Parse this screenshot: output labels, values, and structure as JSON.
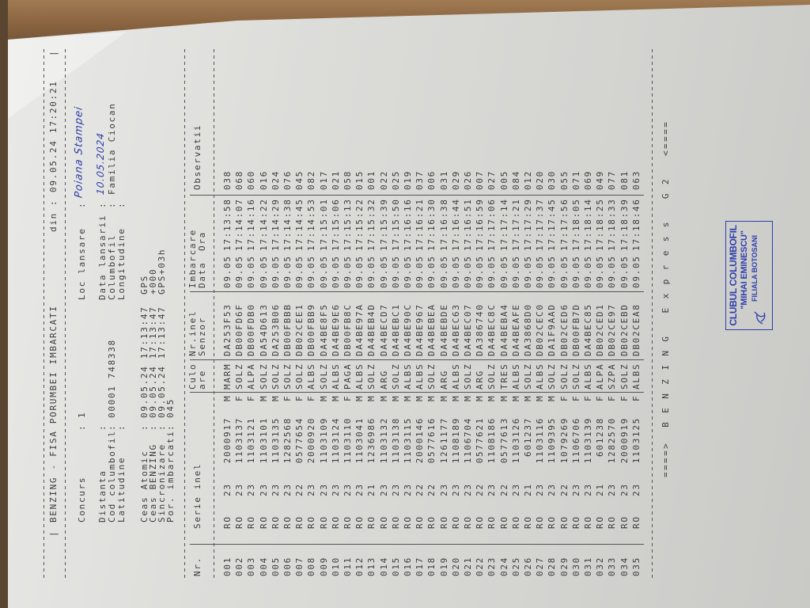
{
  "header": {
    "title": "BENZING - FISA PORUMBEI IMBARCATI",
    "din_label": "din",
    "din_value": "09.05.24 17:20:21"
  },
  "info_left": [
    {
      "label": "Concurs",
      "value": "1"
    },
    {
      "label": "Distanta",
      "value": ""
    },
    {
      "label": "Cod columbofil",
      "value": "00001 748338"
    },
    {
      "label": "Latitudine",
      "value": ""
    }
  ],
  "info_right": [
    {
      "label": "Loc lansare",
      "value": "Poiana Stampei"
    },
    {
      "label": "Data lansarii",
      "value": "10.05.2024"
    },
    {
      "label": "Columbofil",
      "value": "Familia Ciocan"
    },
    {
      "label": "Longitudine",
      "value": ""
    }
  ],
  "clocks": [
    {
      "label": "Ceas Atomic",
      "value": "09.05.24 17:13:47",
      "note": "GPS"
    },
    {
      "label": "Ceas BENZING",
      "value": "09.05.24 17:13:47",
      "note": "+000"
    },
    {
      "label": "Sincronizare",
      "value": "09.05.24 17:13:47",
      "note": "GPS+03h"
    },
    {
      "label": "Por. imbarcati",
      "value": "045",
      "note": ""
    }
  ],
  "table": {
    "headers": {
      "nr": "Nr.",
      "serie": "Serie inel",
      "culoare_1": "Culo",
      "culoare_2": "are",
      "inel_1": "Nr.inel",
      "inel_2": "Senzor",
      "imbarcare": "Imbarcare",
      "data": "Data",
      "ora": "Ora",
      "observatii": "Observatii"
    },
    "rows": [
      {
        "nr": "001",
        "country": "RO",
        "year": "23",
        "ring": "2000917",
        "sex": "M",
        "color": "MARM",
        "chip": "DA253F53",
        "date": "09.05",
        "time": "17:13:58",
        "obs": "038"
      },
      {
        "nr": "002",
        "country": "RO",
        "year": "23",
        "ring": "1103137",
        "sex": "F",
        "color": "SOLZ",
        "chip": "DB00FD6F",
        "date": "09.05",
        "time": "17:14:07",
        "obs": "068"
      },
      {
        "nr": "003",
        "country": "RO",
        "year": "23",
        "ring": "1103121",
        "sex": "F",
        "color": "ALPA",
        "chip": "DB00FDB0",
        "date": "09.05",
        "time": "17:14:16",
        "obs": "060"
      },
      {
        "nr": "004",
        "country": "RO",
        "year": "23",
        "ring": "1103101",
        "sex": "M",
        "color": "SOLZ",
        "chip": "DA54D613",
        "date": "09.05",
        "time": "17:14:22",
        "obs": "016"
      },
      {
        "nr": "005",
        "country": "RO",
        "year": "23",
        "ring": "1103135",
        "sex": "M",
        "color": "SOLZ",
        "chip": "DA253B06",
        "date": "09.05",
        "time": "17:14:29",
        "obs": "024"
      },
      {
        "nr": "006",
        "country": "RO",
        "year": "23",
        "ring": "1282568",
        "sex": "F",
        "color": "SOLZ",
        "chip": "DB00FBBB",
        "date": "09.05",
        "time": "17:14:38",
        "obs": "076"
      },
      {
        "nr": "007",
        "country": "RO",
        "year": "22",
        "ring": "0577654",
        "sex": "F",
        "color": "SOLZ",
        "chip": "DB02CEE1",
        "date": "09.05",
        "time": "17:14:45",
        "obs": "045"
      },
      {
        "nr": "008",
        "country": "RO",
        "year": "23",
        "ring": "2000920",
        "sex": "F",
        "color": "ALBS",
        "chip": "DB00FBB9",
        "date": "09.05",
        "time": "17:14:53",
        "obs": "082"
      },
      {
        "nr": "009",
        "country": "RO",
        "year": "23",
        "ring": "1103109",
        "sex": "M",
        "color": "SOLZ",
        "chip": "DA4BE8F5",
        "date": "09.05",
        "time": "17:15:01",
        "obs": "017"
      },
      {
        "nr": "010",
        "country": "RO",
        "year": "23",
        "ring": "1103124",
        "sex": "M",
        "color": "ALBS",
        "chip": "DA4BE9E6",
        "date": "09.05",
        "time": "17:15:06",
        "obs": "021"
      },
      {
        "nr": "011",
        "country": "RO",
        "year": "23",
        "ring": "1103110",
        "sex": "F",
        "color": "PAGA",
        "chip": "DB00FB8C",
        "date": "09.05",
        "time": "17:15:13",
        "obs": "058"
      },
      {
        "nr": "012",
        "country": "RO",
        "year": "23",
        "ring": "1103041",
        "sex": "M",
        "color": "ALBS",
        "chip": "DA4BE97A",
        "date": "09.05",
        "time": "17:15:22",
        "obs": "015"
      },
      {
        "nr": "013",
        "country": "RO",
        "year": "21",
        "ring": "1236986",
        "sex": "M",
        "color": "SOLZ",
        "chip": "DA4BEB4D",
        "date": "09.05",
        "time": "17:15:32",
        "obs": "001"
      },
      {
        "nr": "014",
        "country": "RO",
        "year": "23",
        "ring": "1103132",
        "sex": "M",
        "color": "ARG",
        "chip": "DA4BECD7",
        "date": "09.05",
        "time": "17:15:39",
        "obs": "022"
      },
      {
        "nr": "015",
        "country": "RO",
        "year": "23",
        "ring": "1103138",
        "sex": "M",
        "color": "SOLZ",
        "chip": "DA4BEBC1",
        "date": "09.05",
        "time": "17:15:50",
        "obs": "025"
      },
      {
        "nr": "016",
        "country": "RO",
        "year": "23",
        "ring": "1103115",
        "sex": "M",
        "color": "ALBS",
        "chip": "DA4BE90C",
        "date": "09.05",
        "time": "17:16:16",
        "obs": "019"
      },
      {
        "nr": "017",
        "country": "RO",
        "year": "22",
        "ring": "2000146",
        "sex": "M",
        "color": "ALBS",
        "chip": "DA4BE967",
        "date": "09.05",
        "time": "17:16:21",
        "obs": "037"
      },
      {
        "nr": "018",
        "country": "RO",
        "year": "22",
        "ring": "0577616",
        "sex": "M",
        "color": "SOLZ",
        "chip": "DA4BEBEA",
        "date": "09.05",
        "time": "17:16:30",
        "obs": "006"
      },
      {
        "nr": "019",
        "country": "RO",
        "year": "23",
        "ring": "1261177",
        "sex": "M",
        "color": "ARG",
        "chip": "DA4BEBDE",
        "date": "09.05",
        "time": "17:16:38",
        "obs": "031"
      },
      {
        "nr": "020",
        "country": "RO",
        "year": "23",
        "ring": "1108189",
        "sex": "M",
        "color": "ALBS",
        "chip": "DA4BEC63",
        "date": "09.05",
        "time": "17:16:44",
        "obs": "029"
      },
      {
        "nr": "021",
        "country": "RO",
        "year": "23",
        "ring": "1106704",
        "sex": "M",
        "color": "SOLZ",
        "chip": "DA4BEC07",
        "date": "09.05",
        "time": "17:16:51",
        "obs": "026"
      },
      {
        "nr": "022",
        "country": "RO",
        "year": "22",
        "ring": "0577621",
        "sex": "M",
        "color": "ARG",
        "chip": "DA386740",
        "date": "09.05",
        "time": "17:16:59",
        "obs": "007"
      },
      {
        "nr": "023",
        "country": "RO",
        "year": "23",
        "ring": "1108186",
        "sex": "M",
        "color": "SOLZ",
        "chip": "DA4BEC8C",
        "date": "09.05",
        "time": "17:17:06",
        "obs": "027"
      },
      {
        "nr": "024",
        "country": "RO",
        "year": "22",
        "ring": "0577613",
        "sex": "M",
        "color": "TRES",
        "chip": "DA4BEBA4",
        "date": "09.05",
        "time": "17:17:14",
        "obs": "005"
      },
      {
        "nr": "025",
        "country": "RO",
        "year": "23",
        "ring": "1103126",
        "sex": "M",
        "color": "ALBS",
        "chip": "DA4BEAFE",
        "date": "09.05",
        "time": "17:17:21",
        "obs": "084"
      },
      {
        "nr": "026",
        "country": "RO",
        "year": "21",
        "ring": "601237",
        "sex": "M",
        "color": "SOLZ",
        "chip": "DA3868D0",
        "date": "09.05",
        "time": "17:17:29",
        "obs": "012"
      },
      {
        "nr": "027",
        "country": "RO",
        "year": "23",
        "ring": "1103116",
        "sex": "M",
        "color": "ALBS",
        "chip": "DB02CEC0",
        "date": "09.05",
        "time": "17:17:37",
        "obs": "020"
      },
      {
        "nr": "028",
        "country": "RO",
        "year": "23",
        "ring": "1109395",
        "sex": "M",
        "color": "SOLZ",
        "chip": "DA1F9AAD",
        "date": "09.05",
        "time": "17:17:45",
        "obs": "030"
      },
      {
        "nr": "029",
        "country": "RO",
        "year": "22",
        "ring": "1079269",
        "sex": "F",
        "color": "SOLZ",
        "chip": "DB02CED6",
        "date": "09.05",
        "time": "17:17:56",
        "obs": "055"
      },
      {
        "nr": "030",
        "country": "RO",
        "year": "23",
        "ring": "1106706",
        "sex": "F",
        "color": "SOLZ",
        "chip": "DB00FB7D",
        "date": "09.05",
        "time": "17:18:05",
        "obs": "071"
      },
      {
        "nr": "031",
        "country": "RO",
        "year": "23",
        "ring": "1103139",
        "sex": "F",
        "color": "ALBS",
        "chip": "DA4BEC85",
        "date": "09.05",
        "time": "17:18:14",
        "obs": "069"
      },
      {
        "nr": "032",
        "country": "RO",
        "year": "21",
        "ring": "601238",
        "sex": "F",
        "color": "ALPA",
        "chip": "DB02CED1",
        "date": "09.05",
        "time": "17:18:25",
        "obs": "049"
      },
      {
        "nr": "033",
        "country": "RO",
        "year": "23",
        "ring": "1282570",
        "sex": "F",
        "color": "SZPA",
        "chip": "DB02CE97",
        "date": "09.05",
        "time": "17:18:33",
        "obs": "077"
      },
      {
        "nr": "034",
        "country": "RO",
        "year": "23",
        "ring": "2000919",
        "sex": "F",
        "color": "SOLZ",
        "chip": "DB02CEBD",
        "date": "09.05",
        "time": "17:18:39",
        "obs": "081"
      },
      {
        "nr": "035",
        "country": "RO",
        "year": "23",
        "ring": "1103125",
        "sex": "F",
        "color": "ALBS",
        "chip": "DB02CEA8",
        "date": "09.05",
        "time": "17:18:46",
        "obs": "063"
      }
    ]
  },
  "footer": "====>  B E N Z I N G   E x p r e s s   G 2   <====",
  "stamp": {
    "line1": "CLUBUL COLUMBOFIL",
    "line2": "\"MIHAI EMINESCU\"",
    "line3": "FILIALA BOTOSANI"
  },
  "colors": {
    "print": "#3c3c3c",
    "ink": "#2c3ca6",
    "stamp": "#2e3fae"
  }
}
